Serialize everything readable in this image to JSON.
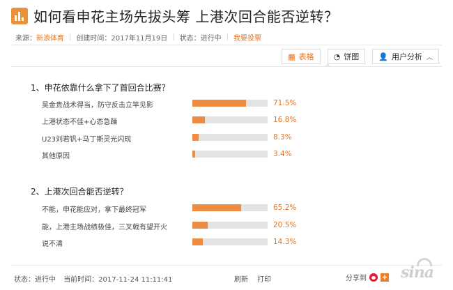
{
  "title": "如何看申花主场先拔头筹 上港次回合能否逆转？",
  "meta": {
    "source_label": "来源：",
    "source_value": "新浪体育",
    "created_label": "创建时间：",
    "created_value": "2017年11月19日",
    "status_label": "状态：",
    "status_value": "进行中",
    "vote_link": "我要投票"
  },
  "toolbar": {
    "table_label": "表格",
    "pie_label": "饼图",
    "user_analysis_label": "用户分析"
  },
  "questions": [
    {
      "title": "1、申花依靠什么拿下了首回合比赛？",
      "options": [
        {
          "label": "吴金贵战术得当，防守反击立竿见影",
          "percent": 71.5,
          "percent_text": "71.5%"
        },
        {
          "label": "上港状态不佳+心态急躁",
          "percent": 16.8,
          "percent_text": "16.8%"
        },
        {
          "label": "U23刘若钒+马丁斯灵光闪现",
          "percent": 8.3,
          "percent_text": "8.3%"
        },
        {
          "label": "其他原因",
          "percent": 3.4,
          "percent_text": "3.4%"
        }
      ]
    },
    {
      "title": "2、上港次回合能否逆转？",
      "options": [
        {
          "label": "不能，申花能应对，拿下最终冠军",
          "percent": 65.2,
          "percent_text": "65.2%"
        },
        {
          "label": "能，上港主场战绩极佳，三叉戟有望开火",
          "percent": 20.5,
          "percent_text": "20.5%"
        },
        {
          "label": "说不清",
          "percent": 14.3,
          "percent_text": "14.3%"
        }
      ]
    }
  ],
  "footer": {
    "status_text": "状态：进行中",
    "time_text": "当前时间：2017-11-24 11:11:41",
    "refresh_label": "刷新",
    "print_label": "打印",
    "share_label": "分享到"
  },
  "watermark": "sina",
  "colors": {
    "accent": "#e8731f",
    "bar_fill": "#ee8a41",
    "bar_track": "#e3e3e3"
  }
}
